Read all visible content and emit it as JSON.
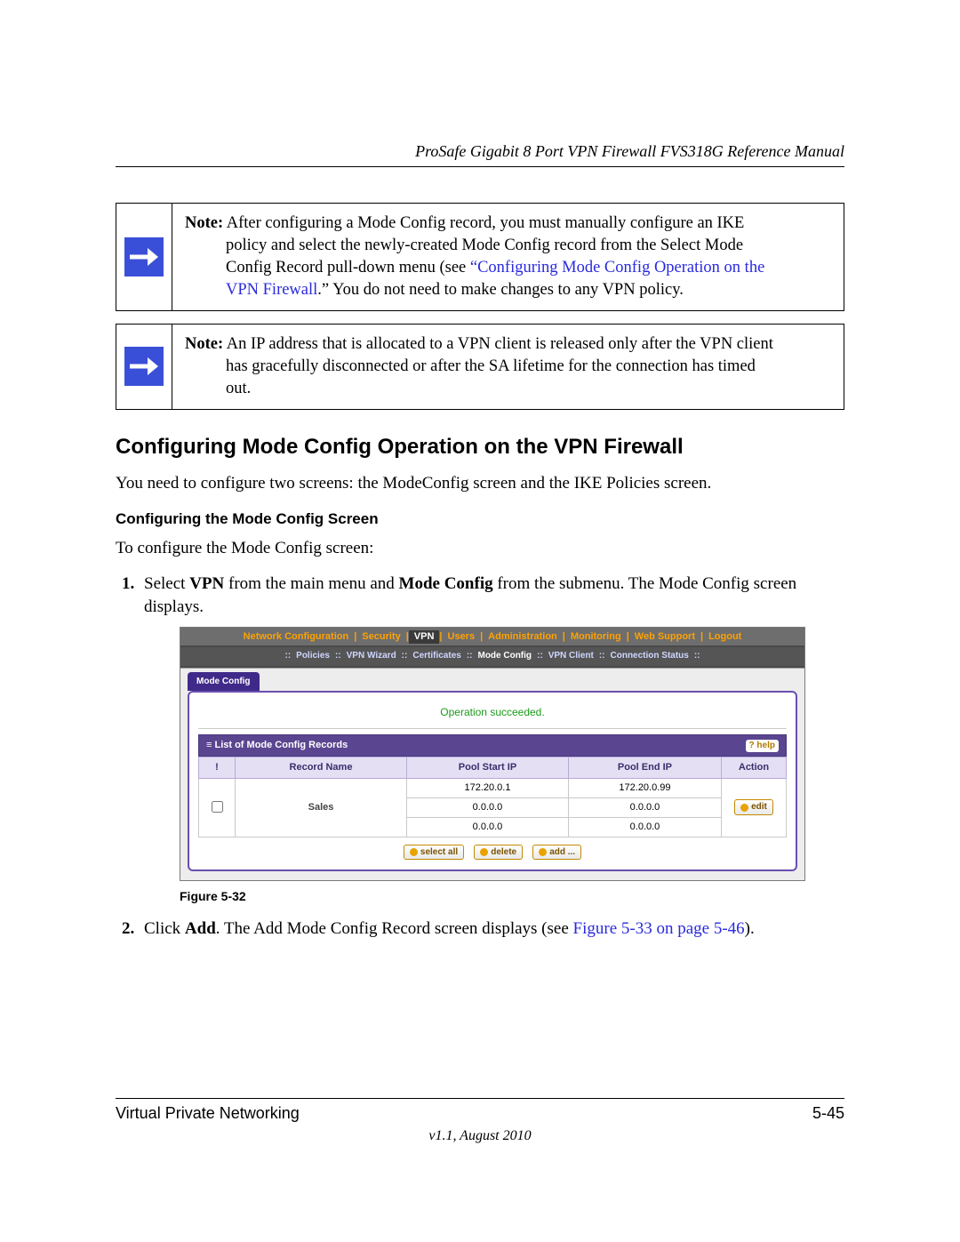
{
  "header": {
    "running_title": "ProSafe Gigabit 8 Port VPN Firewall FVS318G Reference Manual"
  },
  "notes": {
    "n1": {
      "label": "Note:",
      "line1_after_label": " After configuring a Mode Config record, you must manually configure an IKE",
      "line2": "policy and select the newly-created Mode Config record from the Select Mode",
      "line3a": "Config Record pull-down menu (see ",
      "line3_link": "“Configuring Mode Config Operation on the",
      "line4_link": "VPN Firewall",
      "line4b": ".” You do not need to make changes to any VPN policy."
    },
    "n2": {
      "label": "Note:",
      "line1_after_label": " An IP address that is allocated to a VPN client is released only after the VPN client",
      "line2": "has gracefully disconnected or after the SA lifetime for the connection has timed",
      "line3": "out."
    }
  },
  "section": {
    "title": "Configuring Mode Config Operation on the VPN Firewall",
    "intro": "You need to configure two screens: the ModeConfig screen and the IKE Policies screen.",
    "sub_title": "Configuring the Mode Config Screen",
    "sub_intro": "To configure the Mode Config screen:",
    "step1": {
      "pre": "Select ",
      "b1": "VPN",
      "mid": " from the main menu and ",
      "b2": "Mode Config",
      "post": " from the submenu. The Mode Config screen displays."
    },
    "step2": {
      "pre": "Click ",
      "b1": "Add",
      "mid": ". The Add Mode Config Record screen displays (see ",
      "link": "Figure 5-33 on page 5-46",
      "post": ")."
    },
    "figure_label": "Figure 5-32"
  },
  "screenshot": {
    "tabs": [
      "Network Configuration",
      "Security",
      "VPN",
      "Users",
      "Administration",
      "Monitoring",
      "Web Support",
      "Logout"
    ],
    "active_tab_index": 2,
    "subtabs": [
      "Policies",
      "VPN Wizard",
      "Certificates",
      "Mode Config",
      "VPN Client",
      "Connection Status"
    ],
    "active_subtab_index": 3,
    "page_tab": "Mode Config",
    "status": "Operation succeeded.",
    "panel_title": "≡ List of Mode Config Records",
    "help_label": "? help",
    "columns": [
      "Record Name",
      "Pool Start IP",
      "Pool End IP",
      "Action"
    ],
    "row": {
      "name": "Sales",
      "start": [
        "172.20.0.1",
        "0.0.0.0",
        "0.0.0.0"
      ],
      "end": [
        "172.20.0.99",
        "0.0.0.0",
        "0.0.0.0"
      ],
      "edit_label": "edit"
    },
    "buttons": {
      "select_all": "select all",
      "delete": "delete",
      "add": "add ..."
    }
  },
  "footer": {
    "left": "Virtual Private Networking",
    "right": "5-45",
    "version": "v1.1, August 2010"
  },
  "style": {
    "link_color": "#2a2adf",
    "note_icon_bg": "#3a4fd8",
    "tab_fg": "#ffa200",
    "panel_border": "#6a4fae",
    "list_head_bg": "#5a4590"
  }
}
